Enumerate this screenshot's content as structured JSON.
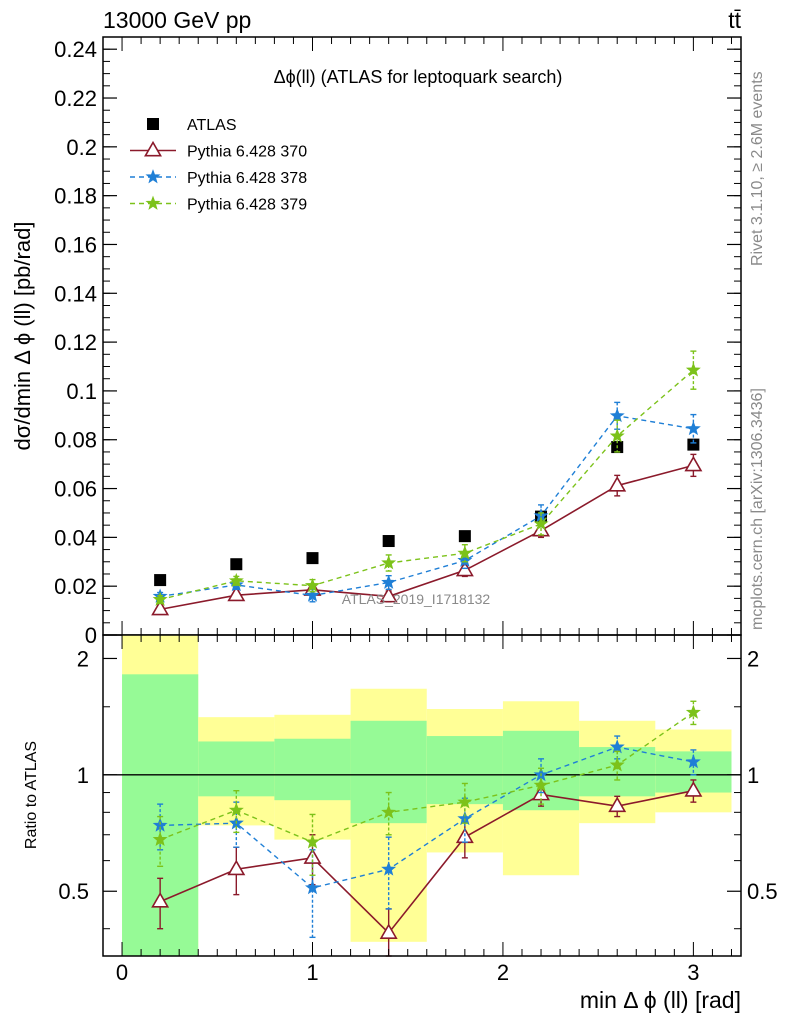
{
  "header": {
    "energy_label": "13000 GeV pp",
    "process_label": "tt̄",
    "side_label_top": "Rivet 3.1.10, ≥ 2.6M events",
    "side_label_bottom": "mcplots.cern.ch [arXiv:1306.3436]",
    "analysis_id": "ATLAS_2019_I1718132"
  },
  "chart_data": [
    {
      "type": "scatter",
      "panel": "main",
      "title": "Δϕ(ll) (ATLAS for leptoquark search)",
      "ylabel": "dσ/dmin Δ ϕ (ll) [pb/rad]",
      "xlim": [
        -0.1,
        3.25
      ],
      "ylim": [
        0,
        0.245
      ],
      "x_tick_labels": [
        "0",
        "1",
        "2",
        "3"
      ],
      "y_tick_labels": [
        "0",
        "0.02",
        "0.04",
        "0.06",
        "0.08",
        "0.1",
        "0.12",
        "0.14",
        "0.16",
        "0.18",
        "0.2",
        "0.22",
        "0.24"
      ],
      "grid": false,
      "legend_position": "top-left",
      "x": [
        0.2,
        0.6,
        1.0,
        1.4,
        1.8,
        2.2,
        2.6,
        3.0
      ],
      "series": [
        {
          "name": "ATLAS",
          "style": "data-square",
          "color": "#000000",
          "values": [
            0.0225,
            0.029,
            0.0315,
            0.0385,
            0.0405,
            0.0485,
            0.077,
            0.078
          ],
          "errors": [
            0.0004,
            0.0004,
            0.0005,
            0.0005,
            0.0006,
            0.0008,
            0.0012,
            0.0013
          ]
        },
        {
          "name": "Pythia 6.428 370",
          "style": "solid-triangle",
          "color": "#8b1a2b",
          "values": [
            0.0105,
            0.0163,
            0.0185,
            0.0158,
            0.0265,
            0.0428,
            0.0612,
            0.0695
          ],
          "errors": [
            0.0015,
            0.0017,
            0.0022,
            0.0022,
            0.0025,
            0.0028,
            0.0042,
            0.0045
          ]
        },
        {
          "name": "Pythia 6.428 378",
          "style": "dashed-star",
          "color": "#1f7fd6",
          "values": [
            0.0158,
            0.0205,
            0.0162,
            0.0215,
            0.0305,
            0.0488,
            0.0898,
            0.0845
          ],
          "errors": [
            0.0016,
            0.0018,
            0.0026,
            0.0028,
            0.0032,
            0.0045,
            0.0055,
            0.0058
          ]
        },
        {
          "name": "Pythia 6.428 379",
          "style": "dashed-star",
          "color": "#7cc21a",
          "values": [
            0.0145,
            0.0222,
            0.0202,
            0.0295,
            0.0335,
            0.0455,
            0.0815,
            0.1085
          ],
          "errors": [
            0.0016,
            0.0018,
            0.0025,
            0.0033,
            0.0035,
            0.0045,
            0.0065,
            0.0078
          ]
        }
      ]
    },
    {
      "type": "scatter",
      "panel": "ratio",
      "ylabel": "Ratio to ATLAS",
      "xlabel": "min Δ ϕ (ll) [rad]",
      "xlim": [
        -0.1,
        3.25
      ],
      "ylim": [
        0.34,
        2.3
      ],
      "x_tick_labels": [
        "0",
        "1",
        "2",
        "3"
      ],
      "y_tick_labels": [
        "0.5",
        "1",
        "2"
      ],
      "reference_line": 1,
      "bands": [
        {
          "x0": 0.0,
          "x1": 0.4,
          "green": [
            0.34,
            1.82
          ],
          "yellow": [
            0.34,
            2.3
          ]
        },
        {
          "x0": 0.4,
          "x1": 0.8,
          "green": [
            0.88,
            1.22
          ],
          "yellow": [
            0.74,
            1.41
          ]
        },
        {
          "x0": 0.8,
          "x1": 1.2,
          "green": [
            0.86,
            1.24
          ],
          "yellow": [
            0.68,
            1.43
          ]
        },
        {
          "x0": 1.2,
          "x1": 1.6,
          "green": [
            0.75,
            1.38
          ],
          "yellow": [
            0.37,
            1.67
          ]
        },
        {
          "x0": 1.6,
          "x1": 2.0,
          "green": [
            0.84,
            1.26
          ],
          "yellow": [
            0.63,
            1.48
          ]
        },
        {
          "x0": 2.0,
          "x1": 2.4,
          "green": [
            0.81,
            1.3
          ],
          "yellow": [
            0.55,
            1.55
          ]
        },
        {
          "x0": 2.4,
          "x1": 2.8,
          "green": [
            0.88,
            1.18
          ],
          "yellow": [
            0.75,
            1.38
          ]
        },
        {
          "x0": 2.8,
          "x1": 3.2,
          "green": [
            0.9,
            1.15
          ],
          "yellow": [
            0.8,
            1.31
          ]
        }
      ],
      "x": [
        0.2,
        0.6,
        1.0,
        1.4,
        1.8,
        2.2,
        2.6,
        3.0
      ],
      "series": [
        {
          "name": "Pythia 6.428 370",
          "style": "solid-triangle",
          "color": "#8b1a2b",
          "values": [
            0.47,
            0.57,
            0.61,
            0.39,
            0.69,
            0.89,
            0.83,
            0.91
          ],
          "errors": [
            0.07,
            0.08,
            0.09,
            0.06,
            0.08,
            0.06,
            0.05,
            0.06
          ]
        },
        {
          "name": "Pythia 6.428 378",
          "style": "dashed-star",
          "color": "#1f7fd6",
          "values": [
            0.74,
            0.75,
            0.51,
            0.57,
            0.77,
            1.0,
            1.18,
            1.08
          ],
          "errors": [
            0.1,
            0.1,
            0.13,
            0.12,
            0.1,
            0.1,
            0.08,
            0.08
          ]
        },
        {
          "name": "Pythia 6.428 379",
          "style": "dashed-star",
          "color": "#7cc21a",
          "values": [
            0.68,
            0.81,
            0.67,
            0.8,
            0.85,
            0.94,
            1.06,
            1.45
          ],
          "errors": [
            0.1,
            0.1,
            0.12,
            0.1,
            0.1,
            0.1,
            0.09,
            0.1
          ]
        }
      ]
    }
  ],
  "colors": {
    "band_green": "#96fa96",
    "band_yellow": "#ffff96",
    "axis": "#000000"
  }
}
